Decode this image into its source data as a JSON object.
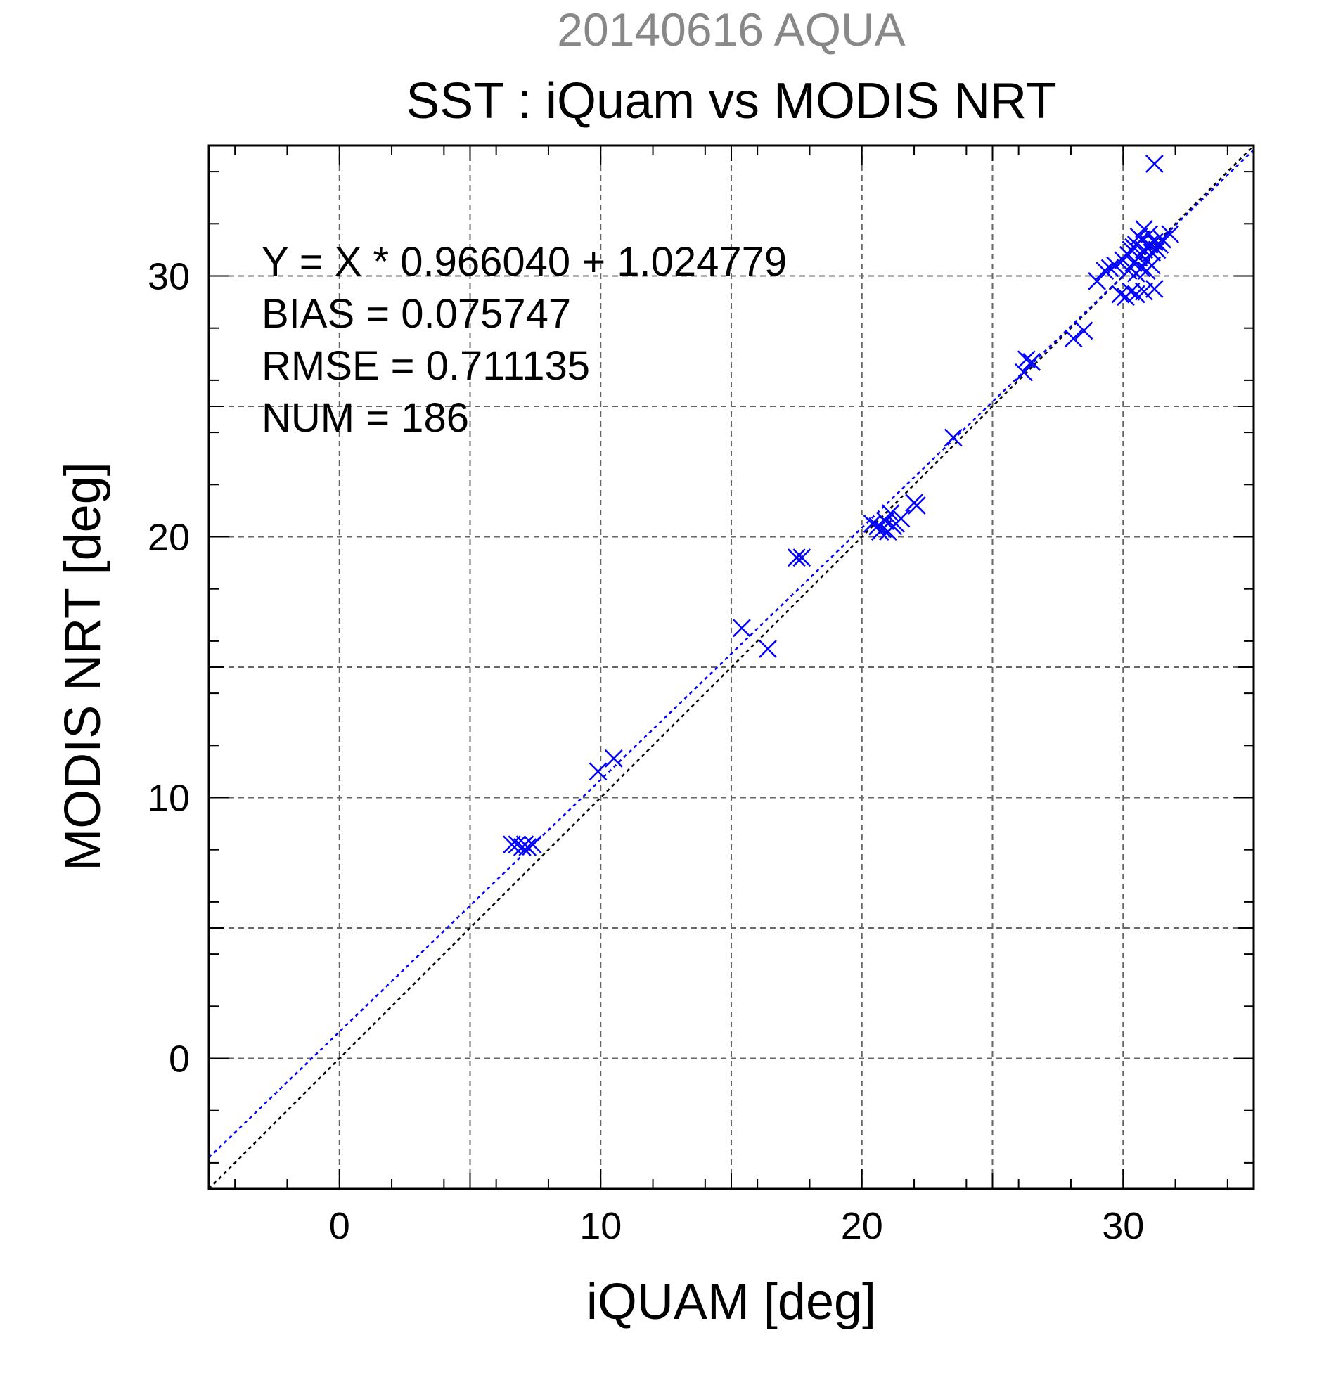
{
  "supertitle": "20140616 AQUA",
  "chart_data": {
    "type": "scatter",
    "title": "SST : iQuam vs MODIS NRT",
    "xlabel": "iQUAM [deg]",
    "ylabel": "MODIS NRT [deg]",
    "xlim": [
      -5,
      35
    ],
    "ylim": [
      -5,
      35
    ],
    "xticks": [
      "0",
      "10",
      "20",
      "30"
    ],
    "yticks": [
      "0",
      "10",
      "20",
      "30"
    ],
    "grid": true,
    "marker": "x",
    "colors": {
      "points": "#0000ff",
      "fit_line": "#0000ff",
      "identity_line": "#000000"
    },
    "stats": [
      "Y = X * 0.966040 + 1.024779",
      "BIAS = 0.075747",
      "RMSE = 0.711135",
      "NUM = 186"
    ],
    "fit": {
      "slope": 0.96604,
      "intercept": 1.024779
    },
    "points": [
      [
        6.6,
        8.2
      ],
      [
        6.8,
        8.2
      ],
      [
        7.0,
        8.1
      ],
      [
        7.1,
        8.2
      ],
      [
        7.4,
        8.2
      ],
      [
        7.2,
        8.1
      ],
      [
        9.9,
        11.0
      ],
      [
        10.5,
        11.5
      ],
      [
        15.4,
        16.5
      ],
      [
        16.4,
        15.7
      ],
      [
        17.5,
        19.2
      ],
      [
        17.7,
        19.2
      ],
      [
        20.4,
        20.5
      ],
      [
        20.6,
        20.4
      ],
      [
        20.8,
        20.3
      ],
      [
        20.9,
        20.6
      ],
      [
        21.0,
        20.2
      ],
      [
        21.1,
        20.9
      ],
      [
        21.3,
        20.5
      ],
      [
        21.5,
        20.7
      ],
      [
        20.7,
        20.2
      ],
      [
        21.2,
        20.4
      ],
      [
        22.0,
        21.3
      ],
      [
        22.1,
        21.2
      ],
      [
        23.5,
        23.8
      ],
      [
        26.2,
        26.3
      ],
      [
        26.3,
        26.8
      ],
      [
        26.5,
        26.7
      ],
      [
        28.1,
        27.6
      ],
      [
        28.5,
        27.9
      ],
      [
        29.0,
        29.8
      ],
      [
        29.3,
        30.2
      ],
      [
        29.5,
        30.3
      ],
      [
        29.7,
        30.4
      ],
      [
        29.9,
        29.3
      ],
      [
        30.1,
        29.2
      ],
      [
        30.3,
        29.4
      ],
      [
        30.5,
        29.3
      ],
      [
        30.8,
        29.4
      ],
      [
        31.2,
        29.5
      ],
      [
        30.0,
        30.6
      ],
      [
        30.2,
        30.8
      ],
      [
        30.3,
        31.0
      ],
      [
        30.4,
        30.5
      ],
      [
        30.5,
        31.2
      ],
      [
        30.6,
        30.7
      ],
      [
        30.7,
        31.4
      ],
      [
        30.8,
        31.0
      ],
      [
        30.9,
        30.6
      ],
      [
        31.0,
        31.2
      ],
      [
        31.1,
        30.9
      ],
      [
        31.2,
        31.3
      ],
      [
        31.3,
        31.0
      ],
      [
        30.5,
        30.1
      ],
      [
        30.7,
        30.3
      ],
      [
        30.9,
        30.2
      ],
      [
        31.0,
        31.6
      ],
      [
        30.6,
        31.5
      ],
      [
        30.4,
        31.1
      ],
      [
        31.4,
        31.2
      ],
      [
        31.5,
        31.4
      ],
      [
        31.8,
        31.6
      ],
      [
        31.1,
        30.4
      ],
      [
        30.8,
        31.8
      ],
      [
        30.2,
        30.2
      ],
      [
        31.2,
        34.3
      ]
    ]
  }
}
